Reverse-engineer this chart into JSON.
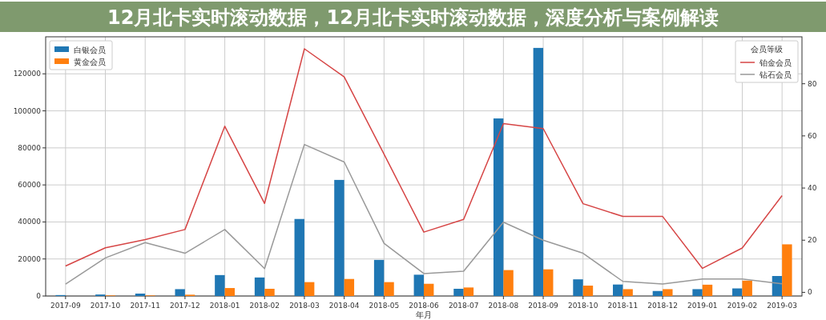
{
  "chart_data": {
    "type": "bar",
    "title": "12月北卡实时滚动数据，12月北卡实时滚动数据，深度分析与案例解读",
    "xlabel": "年月",
    "legend_title": "会员等级",
    "categories": [
      "2017-09",
      "2017-10",
      "2017-11",
      "2017-12",
      "2018-01",
      "2018-02",
      "2018-03",
      "2018-04",
      "2018-05",
      "2018-06",
      "2018-07",
      "2018-08",
      "2018-09",
      "2018-10",
      "2018-11",
      "2018-12",
      "2019-01",
      "2019-02",
      "2019-03"
    ],
    "series": [
      {
        "name": "白银会员",
        "color": "#1f77b4",
        "values": [
          500,
          800,
          1300,
          3700,
          11300,
          10000,
          41600,
          62700,
          19500,
          11500,
          3900,
          95900,
          134000,
          9000,
          6200,
          2700,
          3700,
          4100,
          10800
        ]
      },
      {
        "name": "黄金会员",
        "color": "#ff7f0e",
        "values": [
          0,
          300,
          300,
          700,
          4300,
          3900,
          7500,
          9200,
          7500,
          6600,
          4600,
          14000,
          14400,
          5600,
          3700,
          3700,
          6100,
          8300,
          27900
        ]
      },
      {
        "name": "铂金会员",
        "type": "line",
        "axis": "y2",
        "color": "#d64545",
        "values": [
          10.1,
          17.1,
          20.2,
          24.1,
          63.7,
          34.1,
          93.4,
          82.6,
          53,
          23.1,
          28.0,
          64.7,
          62.8,
          34.0,
          29.1,
          29.1,
          9.2,
          17.0,
          37.1
        ]
      },
      {
        "name": "钻石会员",
        "type": "line",
        "axis": "y2",
        "color": "#999999",
        "values": [
          3.2,
          13.2,
          19.1,
          15.0,
          24.1,
          9.1,
          56.7,
          50,
          18.8,
          7.2,
          8.1,
          26.9,
          20.0,
          15.0,
          4.2,
          3.2,
          5.1,
          5.1,
          3.3
        ]
      }
    ],
    "ylim": [
      0,
      140000
    ],
    "yticks": [
      0,
      20000,
      40000,
      60000,
      80000,
      100000,
      120000
    ],
    "y2lim": [
      -1.4,
      98
    ],
    "y2ticks": [
      0,
      20,
      40,
      60,
      80
    ],
    "grid": true,
    "legend": "top left"
  }
}
